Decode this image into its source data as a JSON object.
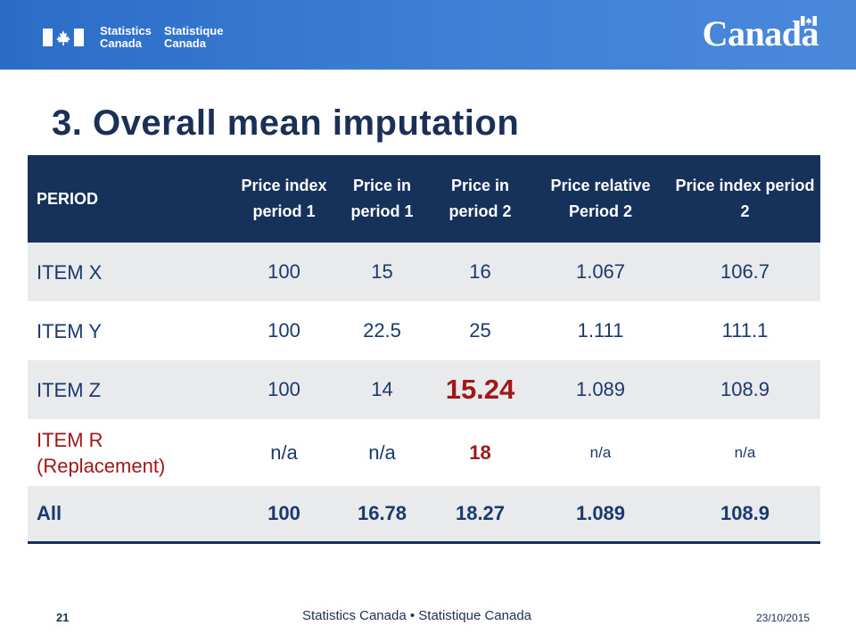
{
  "header": {
    "signature_en": [
      "Statistics",
      "Canada"
    ],
    "signature_fr": [
      "Statistique",
      "Canada"
    ],
    "wordmark": "Canada"
  },
  "title": "3. Overall mean imputation",
  "table": {
    "headers": [
      "PERIOD",
      "Price index period 1",
      "Price in period 1",
      "Price in period 2",
      "Price relative Period 2",
      "Price index period 2"
    ],
    "rows": [
      [
        "ITEM X",
        "100",
        "15",
        "16",
        "1.067",
        "106.7"
      ],
      [
        "ITEM Y",
        "100",
        "22.5",
        "25",
        "1.111",
        "111.1"
      ],
      [
        "ITEM Z",
        "100",
        "14",
        "15.24",
        "1.089",
        "108.9"
      ],
      [
        "ITEM R (Replacement)",
        "n/a",
        "n/a",
        "18",
        "n/a",
        "n/a"
      ],
      [
        "All",
        "100",
        "16.78",
        "18.27",
        "1.089",
        "108.9"
      ]
    ]
  },
  "footer": {
    "page_number": "21",
    "center_text": "Statistics Canada • Statistique Canada",
    "date": "23/10/2015"
  },
  "colors": {
    "header_band": "#3f80d6",
    "title": "#1b3057",
    "table_header": "#16315a",
    "row_shade": "#e9eaec",
    "highlight_red": "#a01818"
  }
}
